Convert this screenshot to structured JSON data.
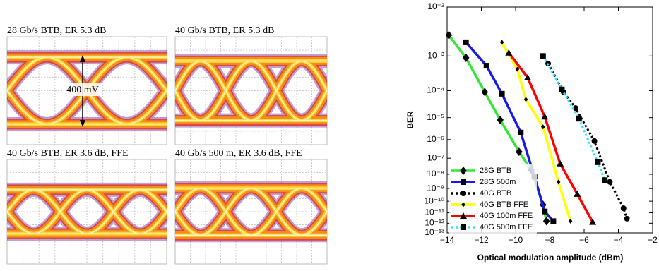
{
  "eye_diagrams": [
    {
      "title": "28 Gb/s BTB, ER 5.3 dB"
    },
    {
      "title": "40 Gb/s BTB, ER 5.3 dB"
    },
    {
      "title": "40 Gb/s BTB, ER 3.6 dB, FFE"
    },
    {
      "title": "40 Gb/s 500 m, ER 3.6 dB, FFE"
    }
  ],
  "annotation": "400 mV",
  "chart_data": {
    "type": "line",
    "x_label": "Optical modulation amplitude (dBm)",
    "y_label": "BER",
    "yscale": "loglog",
    "xlim": [
      -14,
      -2
    ],
    "xticks": [
      {
        "value": -14,
        "label": "−14"
      },
      {
        "value": -12,
        "label": "−12"
      },
      {
        "value": -10,
        "label": "−10"
      },
      {
        "value": -8,
        "label": "−8"
      },
      {
        "value": -6,
        "label": "−6"
      },
      {
        "value": -4,
        "label": "−4"
      },
      {
        "value": -2,
        "label": "−2"
      }
    ],
    "ylim": [
      0.01,
      1e-13
    ],
    "yticks": [
      {
        "value": 0.01,
        "label": "10⁻²"
      },
      {
        "value": 0.001,
        "label": "10⁻³"
      },
      {
        "value": 0.0001,
        "label": "10⁻⁴"
      },
      {
        "value": 1e-05,
        "label": "10⁻⁵"
      },
      {
        "value": 1e-06,
        "label": "10⁻⁶"
      },
      {
        "value": 1e-07,
        "label": "10⁻⁷"
      },
      {
        "value": 1e-08,
        "label": "10⁻⁸"
      },
      {
        "value": 1e-09,
        "label": "10⁻⁹"
      },
      {
        "value": 1e-10,
        "label": "10⁻¹⁰"
      },
      {
        "value": 1e-11,
        "label": "10⁻¹¹"
      },
      {
        "value": 1e-12,
        "label": "10⁻¹²"
      },
      {
        "value": 1e-13,
        "label": "10⁻¹³"
      }
    ],
    "legend": "lower left",
    "series": [
      {
        "name": "28G BTB",
        "color": "#33e633",
        "marker": "diamond",
        "dashed": false,
        "x": [
          -13.9,
          -12.9,
          -11.8,
          -10.9,
          -9.8,
          -9.1,
          -8.4,
          -8.2
        ],
        "values": [
          0.003,
          0.0009,
          9e-05,
          8e-06,
          2.3e-07,
          2e-08,
          5e-11,
          1.6e-12
        ]
      },
      {
        "name": "28G 500m",
        "color": "#1a1ae6",
        "marker": "square",
        "dashed": false,
        "x": [
          -12.9,
          -11.7,
          -10.8,
          -9.7,
          -8.9,
          -8.3,
          -7.8
        ],
        "values": [
          0.0021,
          0.00056,
          7.9e-05,
          2.2e-06,
          7e-09,
          1.3e-11,
          1.6e-12
        ]
      },
      {
        "name": "40G BTB",
        "color": "#000000",
        "marker": "circle",
        "dashed": true,
        "x": [
          -8.1,
          -7.2,
          -6.5,
          -5.4,
          -4.5,
          -3.7,
          -3.5
        ],
        "values": [
          0.00064,
          9e-05,
          2.4e-05,
          8.5e-07,
          3e-09,
          2.5e-11,
          2.8e-12
        ]
      },
      {
        "name": "40G BTB FFE",
        "color": "#ffff00",
        "marker": "small-diamond",
        "dashed": false,
        "x": [
          -10.8,
          -9.9,
          -9.4,
          -8.4,
          -7.5,
          -6.8
        ],
        "values": [
          0.0021,
          0.00045,
          5e-05,
          4e-06,
          3e-09,
          1.6e-12
        ]
      },
      {
        "name": "40G 100m FFE",
        "color": "#ff0000",
        "marker": "triangle",
        "dashed": false,
        "x": [
          -10.4,
          -9.3,
          -8.3,
          -7.4,
          -6.4,
          -5.5
        ],
        "values": [
          0.0012,
          0.00026,
          1.1e-05,
          4.8e-08,
          3.8e-10,
          1.3e-12
        ]
      },
      {
        "name": "40G 500m FFE",
        "color": "#33e0ff",
        "marker": "square",
        "dashed": true,
        "x": [
          -8.4,
          -7.3,
          -6.3,
          -5.2,
          -4.8
        ],
        "values": [
          0.001,
          0.00011,
          9e-06,
          5.8e-08,
          4e-09
        ]
      }
    ]
  }
}
